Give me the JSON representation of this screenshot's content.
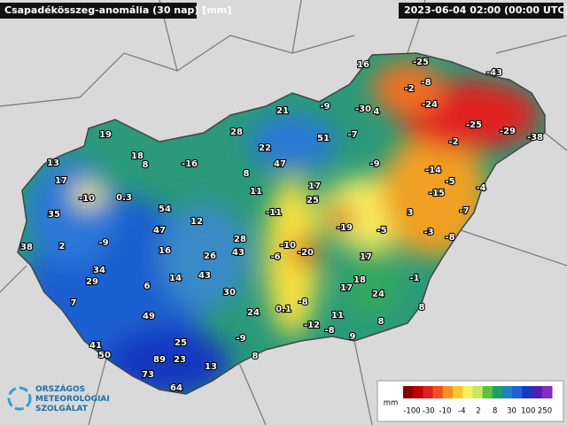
{
  "header": {
    "title": "Csapadékösszeg-anomália (30 nap) [mm]",
    "timestamp": "2023-06-04 02:00 (00:00 UTC)"
  },
  "stations": [
    16,
    -25,
    -43,
    -2,
    -8,
    21,
    -9,
    -30,
    4,
    -24,
    -25,
    -29,
    -38,
    19,
    28,
    22,
    51,
    -7,
    -2,
    18,
    8,
    -16,
    47,
    -9,
    -14,
    13,
    17,
    -10,
    0.3,
    8,
    11,
    17,
    -5,
    -4,
    -15,
    25,
    54,
    -11,
    -7,
    3,
    35,
    12,
    -19,
    -5,
    -3,
    47,
    2,
    -9,
    28,
    -8,
    38,
    -10,
    -20,
    16,
    43,
    17,
    -6,
    26,
    34,
    29,
    14,
    43,
    18,
    -1,
    6,
    17,
    24,
    30,
    7,
    -8,
    8,
    0.1,
    24,
    49,
    11,
    8,
    -12,
    -8,
    -9,
    9,
    25,
    41,
    50,
    8,
    89,
    23,
    13,
    73,
    64
  ],
  "legend": {
    "unit": "mm",
    "labels": [
      -100,
      -30,
      -10,
      -4,
      2,
      8,
      30,
      100,
      250
    ]
  },
  "logo": {
    "lines": [
      "ORSZÁGOS",
      "METEOROLÓGIAI",
      "SZOLGÁLAT"
    ]
  }
}
